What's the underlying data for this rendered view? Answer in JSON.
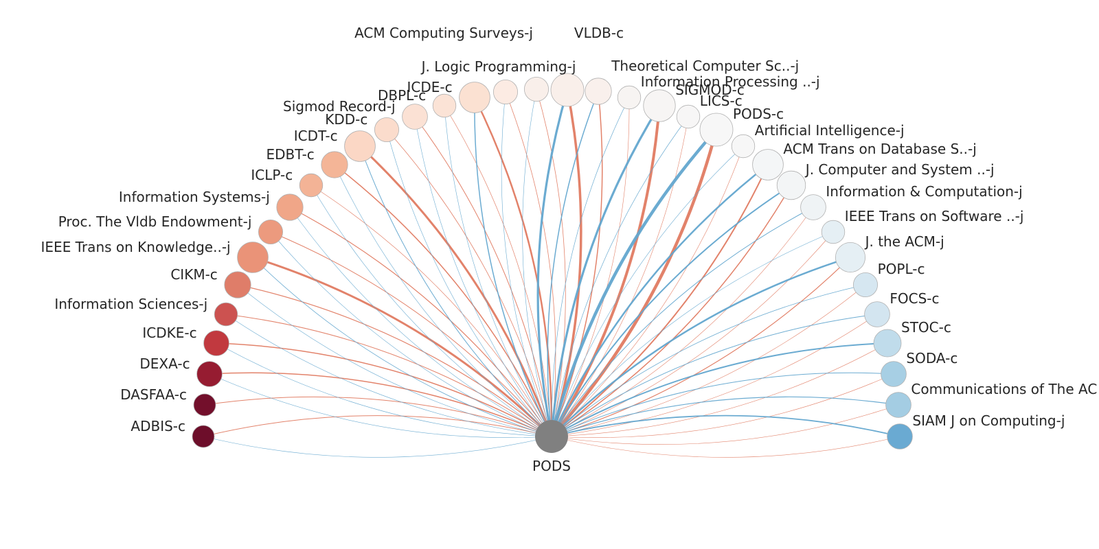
{
  "diagram": {
    "center": {
      "label": "PODS",
      "color": "#808080"
    },
    "legend_colors": {
      "outgoing_cites": "#e07b62",
      "incoming_cites": "#63a6cf"
    },
    "venues": [
      {
        "label": "ADBIS-c",
        "color": "#6d0e2a",
        "size": 1,
        "cite_out": 1,
        "cite_in": 0.5
      },
      {
        "label": "DASFAA-c",
        "color": "#730f2b",
        "size": 1,
        "cite_out": 1,
        "cite_in": 0
      },
      {
        "label": "DEXA-c",
        "color": "#961c31",
        "size": 1.3,
        "cite_out": 1.5,
        "cite_in": 0.5
      },
      {
        "label": "ICDKE-c",
        "color": "#c1393f",
        "size": 1.3,
        "cite_out": 1.5,
        "cite_in": 0.5
      },
      {
        "label": "Information Sciences-j",
        "color": "#cc5250",
        "size": 1.1,
        "cite_out": 1,
        "cite_in": 0.5
      },
      {
        "label": "CIKM-c",
        "color": "#df7d69",
        "size": 1.4,
        "cite_out": 1.2,
        "cite_in": 0.5
      },
      {
        "label": "IEEE Trans on Knowledge..-j",
        "color": "#ea9378",
        "size": 1.8,
        "cite_out": 3,
        "cite_in": 0.8
      },
      {
        "label": "Proc. The Vldb Endowment-j",
        "color": "#ec9a7e",
        "size": 1.2,
        "cite_out": 1,
        "cite_in": 0.5
      },
      {
        "label": "Information Systems-j",
        "color": "#f0a688",
        "size": 1.4,
        "cite_out": 1.2,
        "cite_in": 0.5
      },
      {
        "label": "ICLP-c",
        "color": "#f3b396",
        "size": 1.1,
        "cite_out": 0.7,
        "cite_in": 0.5
      },
      {
        "label": "EDBT-c",
        "color": "#f4b597",
        "size": 1.4,
        "cite_out": 1.5,
        "cite_in": 0.5
      },
      {
        "label": "ICDT-c",
        "color": "#fbd7c5",
        "size": 1.8,
        "cite_out": 3,
        "cite_in": 1
      },
      {
        "label": "KDD-c",
        "color": "#fbdccc",
        "size": 1.2,
        "cite_out": 0.8,
        "cite_in": 0.5
      },
      {
        "label": "Sigmod Record-j",
        "color": "#fbe1d4",
        "size": 1.3,
        "cite_out": 1,
        "cite_in": 0.5
      },
      {
        "label": "DBPL-c",
        "color": "#fbe3d6",
        "size": 1.1,
        "cite_out": 0.7,
        "cite_in": 0.5
      },
      {
        "label": "ICDE-c",
        "color": "#fbe1d2",
        "size": 1.8,
        "cite_out": 2.5,
        "cite_in": 1.5
      },
      {
        "label": "J. Logic Programming-j",
        "color": "#fcebe3",
        "size": 1.2,
        "cite_out": 0.8,
        "cite_in": 0.5
      },
      {
        "label": "ACM Computing Surveys-j",
        "color": "#f9efea",
        "size": 1.2,
        "cite_out": 0.8,
        "cite_in": 0.5
      },
      {
        "label": "VLDB-c",
        "color": "#f9efea",
        "size": 2,
        "cite_out": 3.5,
        "cite_in": 3.2
      },
      {
        "label": "Theoretical Computer Sc..-j",
        "color": "#f9f0ec",
        "size": 1.4,
        "cite_out": 1.5,
        "cite_in": 1.5
      },
      {
        "label": "Information Processing ..-j",
        "color": "#f7f4f2",
        "size": 1.1,
        "cite_out": 0.5,
        "cite_in": 0.7
      },
      {
        "label": "SIGMOD-c",
        "color": "#f7f5f4",
        "size": 1.9,
        "cite_out": 4,
        "cite_in": 3.2
      },
      {
        "label": "LICS-c",
        "color": "#f7f6f6",
        "size": 1.1,
        "cite_out": 0.5,
        "cite_in": 0.7
      },
      {
        "label": "PODS-c",
        "color": "#f7f7f7",
        "size": 2,
        "cite_out": 4.5,
        "cite_in": 4.5
      },
      {
        "label": "Artificial Intelligence-j",
        "color": "#f7f7f7",
        "size": 1.1,
        "cite_out": 0.5,
        "cite_in": 0.5
      },
      {
        "label": "ACM Trans on Database S..-j",
        "color": "#f4f6f7",
        "size": 1.8,
        "cite_out": 2,
        "cite_in": 2.5
      },
      {
        "label": "J. Computer and System ..-j",
        "color": "#f3f5f6",
        "size": 1.6,
        "cite_out": 1.5,
        "cite_in": 2
      },
      {
        "label": "Information & Computation-j",
        "color": "#eff3f5",
        "size": 1.3,
        "cite_out": 0.5,
        "cite_in": 1
      },
      {
        "label": "IEEE Trans on Software ..-j",
        "color": "#e5eff4",
        "size": 1.1,
        "cite_out": 0.5,
        "cite_in": 0.5
      },
      {
        "label": "J. the ACM-j",
        "color": "#e5eff4",
        "size": 1.7,
        "cite_out": 1.2,
        "cite_in": 2.5
      },
      {
        "label": "POPL-c",
        "color": "#d6e7f1",
        "size": 1.2,
        "cite_out": 0.5,
        "cite_in": 0.8
      },
      {
        "label": "FOCS-c",
        "color": "#d3e5f0",
        "size": 1.3,
        "cite_out": 0.5,
        "cite_in": 1
      },
      {
        "label": "STOC-c",
        "color": "#c0dceb",
        "size": 1.5,
        "cite_out": 0.6,
        "cite_in": 2
      },
      {
        "label": "SODA-c",
        "color": "#a7cfe4",
        "size": 1.3,
        "cite_out": 0.5,
        "cite_in": 1
      },
      {
        "label": "Communications of The AC",
        "color": "#a4cde3",
        "size": 1.3,
        "cite_out": 0.5,
        "cite_in": 1.2
      },
      {
        "label": "SIAM J on Computing-j",
        "color": "#6aaad2",
        "size": 1.3,
        "cite_out": 0.5,
        "cite_in": 1.8
      }
    ]
  }
}
